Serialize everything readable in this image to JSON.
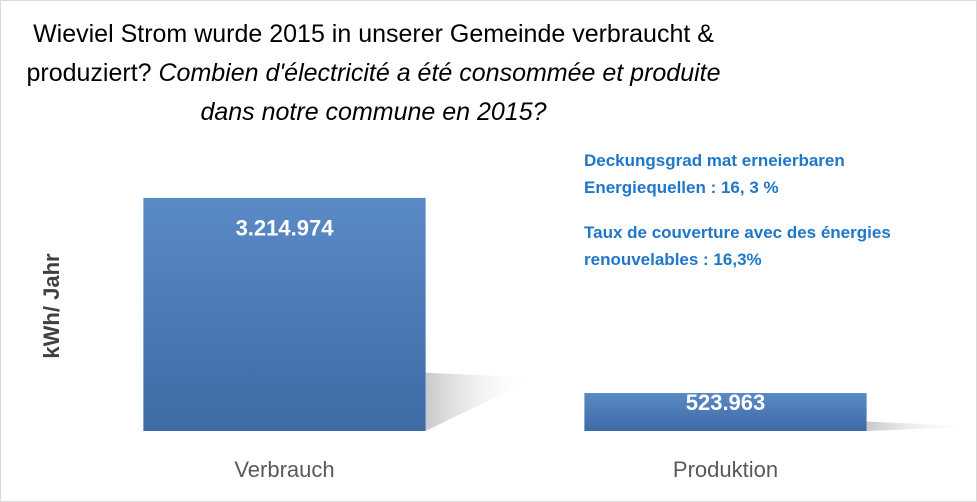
{
  "chart_data": {
    "type": "bar",
    "title": "Wieviel Strom wurde 2015 in unserer Gemeinde verbraucht & produziert?",
    "subtitle": "Combien d'électricité a été consommée et produite dans notre commune en 2015?",
    "y_label": "kWh/ Jahr",
    "annotations": [
      "Deckungsgrad mat erneierbaren Energiequellen : 16, 3 %",
      "Taux de couverture avec des énergies renouvelables : 16,3%"
    ],
    "categories": [
      "Verbrauch",
      "Produktion"
    ],
    "values": [
      3214974,
      523963
    ],
    "value_labels": [
      "3.214.974",
      "523.963"
    ],
    "color": "#4f81bd",
    "ylim": [
      0,
      4000000
    ]
  }
}
